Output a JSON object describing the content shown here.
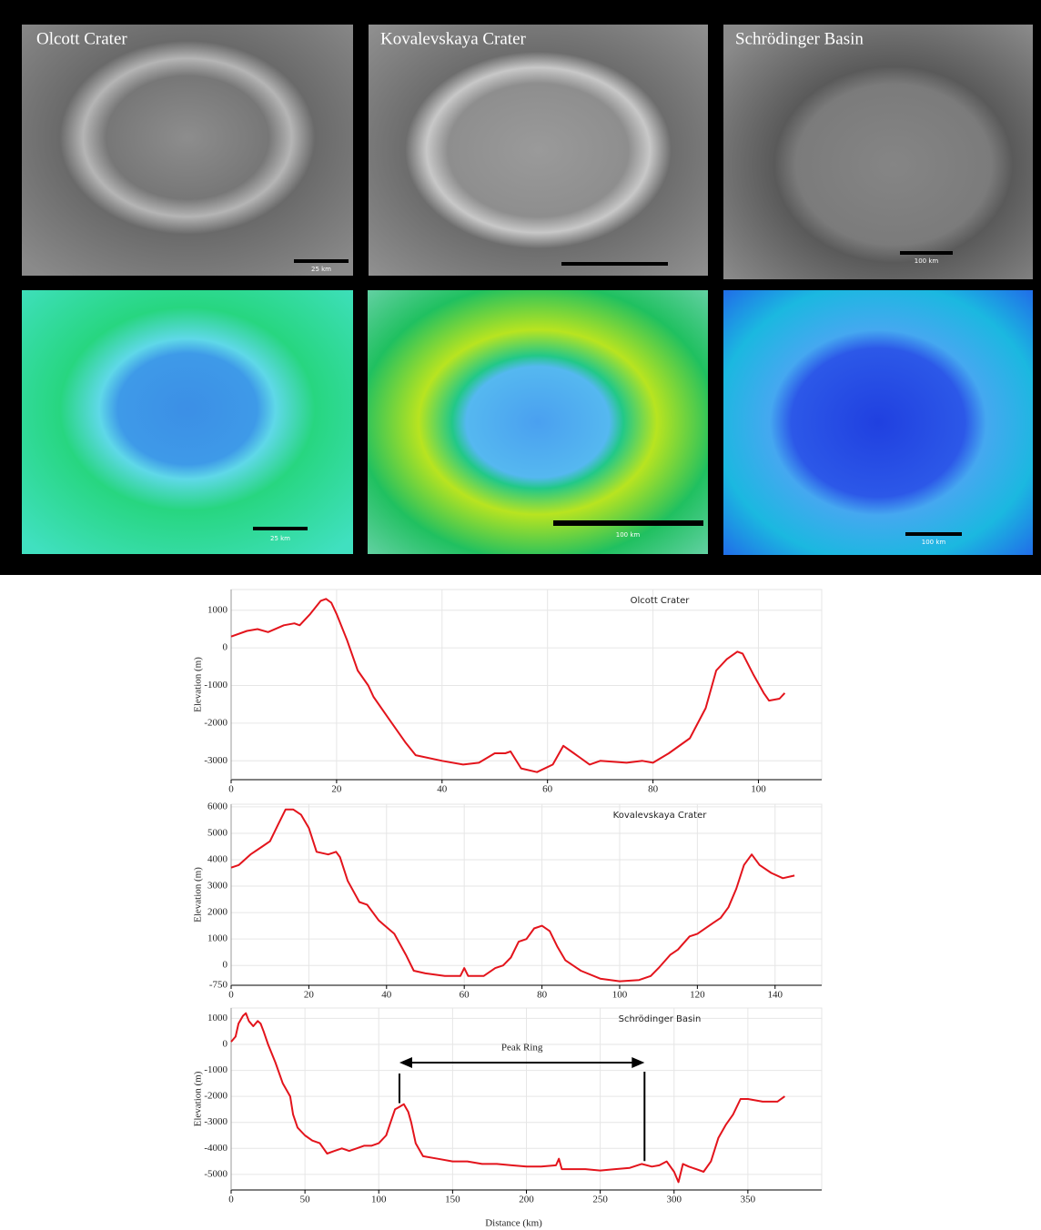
{
  "images": [
    {
      "label": "Olcott Crater",
      "scale_top": "25 km",
      "scale_bottom": "25 km"
    },
    {
      "label": "Kovalevskaya Crater",
      "scale_bottom": "100 km"
    },
    {
      "label": "Schrödinger Basin",
      "scale_top": "100 km",
      "scale_bottom": "100 km"
    }
  ],
  "chart_data": [
    {
      "type": "line",
      "title": "Olcott Crater",
      "y_label": "Elevation (m)",
      "color": "#e3141c",
      "grid": true,
      "xlim": [
        0,
        112
      ],
      "xticks": [
        0,
        20,
        40,
        60,
        80,
        100
      ],
      "ylim": [
        -3500,
        1550
      ],
      "yticks": [
        -3000,
        -2000,
        -1000,
        0,
        1000
      ],
      "x": [
        0,
        3,
        5,
        7,
        10,
        12,
        13,
        15,
        17,
        18,
        19,
        20,
        22,
        24,
        26,
        27,
        30,
        33,
        35,
        40,
        44,
        47,
        50,
        52,
        53,
        55,
        58,
        61,
        63,
        65,
        68,
        70,
        75,
        78,
        80,
        83,
        87,
        90,
        92,
        94,
        96,
        97,
        99,
        101,
        102,
        104,
        105
      ],
      "values": [
        300,
        450,
        500,
        420,
        600,
        650,
        600,
        900,
        1250,
        1300,
        1200,
        900,
        200,
        -600,
        -1000,
        -1300,
        -1900,
        -2500,
        -2850,
        -3000,
        -3100,
        -3050,
        -2800,
        -2800,
        -2750,
        -3200,
        -3300,
        -3100,
        -2600,
        -2800,
        -3100,
        -3000,
        -3050,
        -3000,
        -3050,
        -2800,
        -2400,
        -1600,
        -600,
        -300,
        -100,
        -150,
        -700,
        -1200,
        -1400,
        -1350,
        -1200
      ]
    },
    {
      "type": "line",
      "title": "Kovalevskaya Crater",
      "y_label": "Elevation (m)",
      "color": "#e3141c",
      "grid": true,
      "xlim": [
        0,
        152
      ],
      "xticks": [
        0,
        20,
        40,
        60,
        80,
        100,
        120,
        140
      ],
      "ylim": [
        -750,
        6100
      ],
      "yticks": [
        -750,
        0,
        1000,
        2000,
        3000,
        4000,
        5000,
        6000
      ],
      "x": [
        0,
        2,
        5,
        8,
        10,
        12,
        14,
        16,
        18,
        20,
        22,
        25,
        27,
        28,
        30,
        33,
        35,
        38,
        42,
        45,
        47,
        50,
        55,
        59,
        60,
        61,
        65,
        68,
        70,
        72,
        74,
        76,
        78,
        80,
        82,
        84,
        86,
        90,
        95,
        100,
        105,
        108,
        110,
        113,
        115,
        118,
        120,
        124,
        126,
        128,
        130,
        132,
        134,
        136,
        139,
        142,
        145
      ],
      "values": [
        3700,
        3800,
        4200,
        4500,
        4700,
        5300,
        5900,
        5900,
        5700,
        5200,
        4300,
        4200,
        4300,
        4100,
        3200,
        2400,
        2300,
        1700,
        1200,
        400,
        -200,
        -300,
        -400,
        -400,
        -100,
        -400,
        -400,
        -100,
        0,
        300,
        900,
        1000,
        1400,
        1500,
        1300,
        700,
        200,
        -200,
        -500,
        -600,
        -550,
        -400,
        -100,
        400,
        600,
        1100,
        1200,
        1600,
        1800,
        2200,
        2900,
        3800,
        4200,
        3800,
        3500,
        3300,
        3400
      ]
    },
    {
      "type": "line",
      "title": "Schrödinger Basin",
      "y_label": "Elevation (m)",
      "x_label": "Distance (km)",
      "color": "#e3141c",
      "grid": true,
      "xlim": [
        0,
        400
      ],
      "xticks": [
        0,
        50,
        100,
        150,
        200,
        250,
        300,
        350
      ],
      "ylim": [
        -5600,
        1400
      ],
      "yticks": [
        -5000,
        -4000,
        -3000,
        -2000,
        -1000,
        0,
        1000
      ],
      "x": [
        0,
        3,
        5,
        8,
        10,
        12,
        15,
        18,
        20,
        22,
        25,
        30,
        35,
        40,
        42,
        45,
        50,
        55,
        60,
        65,
        70,
        75,
        80,
        85,
        90,
        95,
        100,
        105,
        108,
        111,
        114,
        117,
        120,
        122,
        125,
        130,
        140,
        150,
        160,
        170,
        180,
        190,
        200,
        210,
        220,
        222,
        224,
        230,
        240,
        250,
        260,
        270,
        278,
        285,
        290,
        295,
        300,
        303,
        306,
        310,
        315,
        320,
        325,
        330,
        335,
        340,
        345,
        350,
        360,
        370,
        375
      ],
      "values": [
        100,
        300,
        800,
        1100,
        1200,
        900,
        700,
        900,
        800,
        500,
        0,
        -700,
        -1500,
        -2000,
        -2700,
        -3200,
        -3500,
        -3700,
        -3800,
        -4200,
        -4100,
        -4000,
        -4100,
        -4000,
        -3900,
        -3900,
        -3800,
        -3500,
        -3000,
        -2500,
        -2400,
        -2300,
        -2600,
        -3000,
        -3800,
        -4300,
        -4400,
        -4500,
        -4500,
        -4600,
        -4600,
        -4650,
        -4700,
        -4700,
        -4650,
        -4400,
        -4800,
        -4800,
        -4800,
        -4850,
        -4800,
        -4750,
        -4600,
        -4700,
        -4650,
        -4500,
        -4900,
        -5300,
        -4600,
        -4700,
        -4800,
        -4900,
        -4500,
        -3600,
        -3100,
        -2700,
        -2100,
        -2100,
        -2200,
        -2200,
        -2000
      ],
      "annotation": {
        "text": "Peak Ring",
        "x_start": 114,
        "x_end": 280,
        "y": -700
      }
    }
  ]
}
